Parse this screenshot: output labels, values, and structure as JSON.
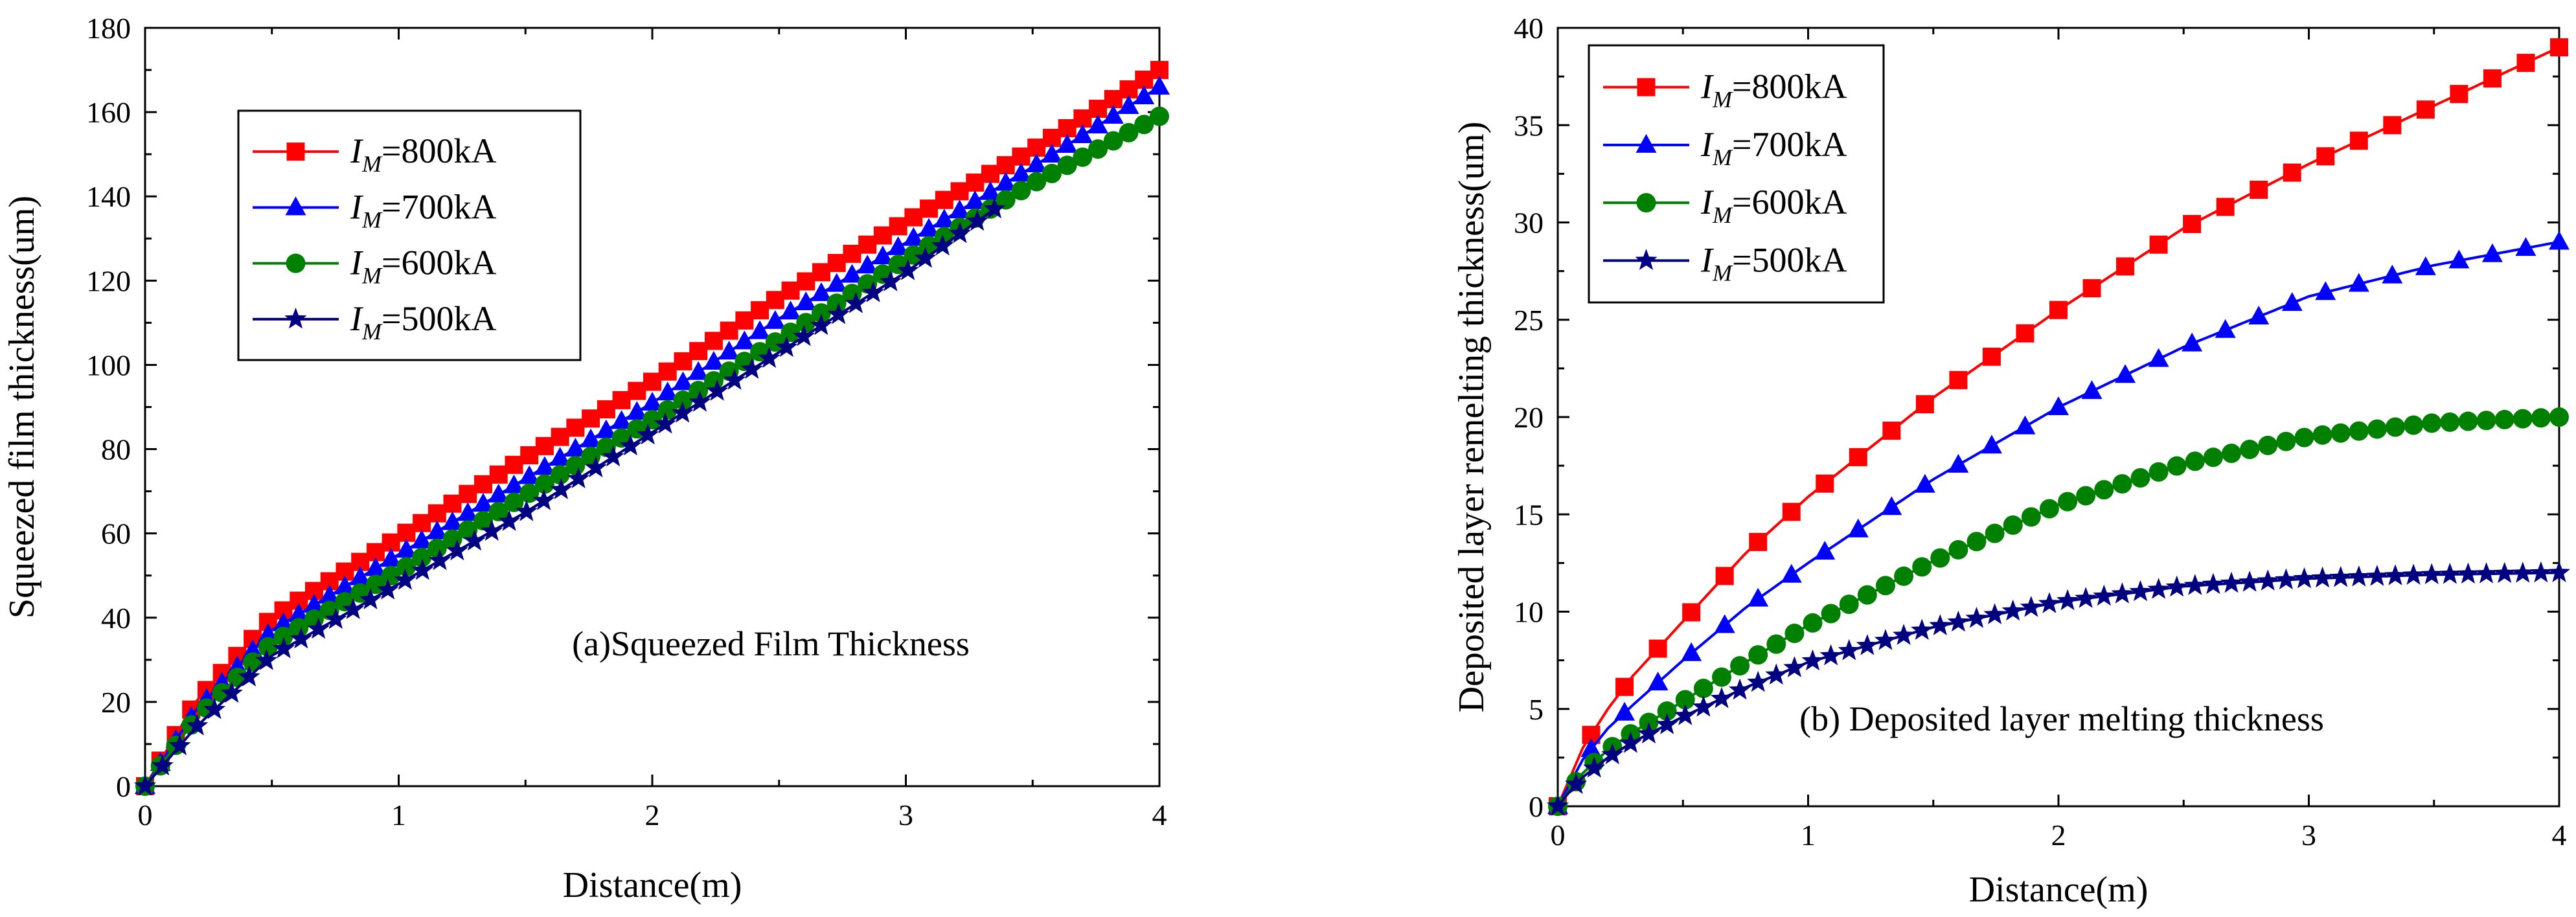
{
  "chart_data": [
    {
      "type": "line",
      "annotation": "(a)Squeezed Film Thickness",
      "xlabel": "Distance(m)",
      "ylabel": "Squeezed film thickness(um)",
      "xlim": [
        0,
        4
      ],
      "ylim": [
        0,
        180
      ],
      "xticks": [
        0,
        1,
        2,
        3,
        4
      ],
      "yticks": [
        0,
        20,
        40,
        60,
        80,
        100,
        120,
        140,
        160,
        180
      ],
      "legend_position": "top-left",
      "series": [
        {
          "name": "I_M=800kA",
          "legend_prefix": "I",
          "legend_subscript": "M",
          "legend_value": "=800kA",
          "color": "#ff0000",
          "marker": "square",
          "marker_count": 67,
          "x": [
            0,
            0.2,
            0.5,
            1.0,
            1.5,
            2.0,
            2.5,
            3.0,
            3.5,
            4.0
          ],
          "y": [
            0,
            20,
            40,
            59,
            78,
            96,
            116,
            134,
            151,
            170
          ]
        },
        {
          "name": "I_M=700kA",
          "legend_prefix": "I",
          "legend_subscript": "M",
          "legend_value": "=700kA",
          "color": "#0000ff",
          "marker": "triangle",
          "marker_count": 67,
          "x": [
            0,
            0.2,
            0.5,
            1.0,
            1.5,
            2.0,
            2.5,
            3.0,
            3.5,
            4.0
          ],
          "y": [
            0,
            18,
            37,
            55,
            73,
            91,
            111,
            129,
            147,
            166
          ]
        },
        {
          "name": "I_M=600kA",
          "legend_prefix": "I",
          "legend_subscript": "M",
          "legend_value": "=600kA",
          "color": "#008000",
          "marker": "circle",
          "marker_count": 67,
          "x": [
            0,
            0.2,
            0.5,
            1.0,
            1.5,
            2.0,
            2.5,
            3.0,
            3.5,
            4.0
          ],
          "y": [
            0,
            16,
            34,
            51,
            69,
            87,
            106,
            125,
            143,
            159
          ]
        },
        {
          "name": "I_M=500kA",
          "legend_prefix": "I",
          "legend_subscript": "M",
          "legend_value": "=500kA",
          "color": "#000080",
          "marker": "star",
          "marker_count": 50,
          "x": [
            0,
            0.2,
            0.5,
            1.0,
            1.5,
            2.0,
            2.5,
            3.0,
            3.35
          ],
          "y": [
            0,
            14,
            31,
            48,
            65,
            84,
            103,
            122,
            137
          ]
        }
      ]
    },
    {
      "type": "line",
      "annotation": "(b) Deposited layer melting thickness",
      "xlabel": "Distance(m)",
      "ylabel": "Deposited layer remelting thickness(um)",
      "xlim": [
        0,
        4
      ],
      "ylim": [
        0,
        40
      ],
      "xticks": [
        0,
        1,
        2,
        3,
        4
      ],
      "yticks": [
        0,
        5,
        10,
        15,
        20,
        25,
        30,
        35,
        40
      ],
      "legend_position": "top-left",
      "series": [
        {
          "name": "I_M=800kA",
          "legend_prefix": "I",
          "legend_subscript": "M",
          "legend_value": "=800kA",
          "color": "#ff0000",
          "marker": "square",
          "marker_count": 31,
          "x": [
            0,
            0.05,
            0.1,
            0.2,
            0.3,
            0.5,
            0.75,
            1.0,
            1.5,
            2.0,
            2.5,
            3.0,
            3.5,
            4.0
          ],
          "y": [
            0,
            1.5,
            3.0,
            5.0,
            6.7,
            9.5,
            13.0,
            15.9,
            21.0,
            25.5,
            29.7,
            33.0,
            36.0,
            39.0
          ]
        },
        {
          "name": "I_M=700kA",
          "legend_prefix": "I",
          "legend_subscript": "M",
          "legend_value": "=700kA",
          "color": "#0000ff",
          "marker": "triangle",
          "marker_count": 31,
          "x": [
            0,
            0.05,
            0.1,
            0.2,
            0.3,
            0.5,
            0.75,
            1.0,
            1.5,
            2.0,
            2.5,
            3.0,
            3.5,
            4.0
          ],
          "y": [
            0,
            1.2,
            2.4,
            4.0,
            5.2,
            7.5,
            10.2,
            12.5,
            16.8,
            20.5,
            23.6,
            26.2,
            27.8,
            29.0
          ]
        },
        {
          "name": "I_M=600kA",
          "legend_prefix": "I",
          "legend_subscript": "M",
          "legend_value": "=600kA",
          "color": "#008000",
          "marker": "circle",
          "marker_count": 56,
          "x": [
            0,
            0.05,
            0.1,
            0.2,
            0.3,
            0.5,
            0.75,
            1.0,
            1.5,
            2.0,
            2.5,
            3.0,
            3.5,
            4.0
          ],
          "y": [
            0,
            0.9,
            1.7,
            2.9,
            3.8,
            5.4,
            7.4,
            9.3,
            12.6,
            15.5,
            17.6,
            19.0,
            19.7,
            20.0
          ]
        },
        {
          "name": "I_M=500kA",
          "legend_prefix": "I",
          "legend_subscript": "M",
          "legend_value": "=500kA",
          "color": "#000080",
          "marker": "star",
          "marker_count": 56,
          "x": [
            0,
            0.05,
            0.1,
            0.2,
            0.3,
            0.5,
            0.75,
            1.0,
            1.5,
            2.0,
            2.5,
            3.0,
            3.5,
            4.0
          ],
          "y": [
            0,
            0.8,
            1.5,
            2.5,
            3.3,
            4.6,
            6.1,
            7.4,
            9.2,
            10.5,
            11.3,
            11.7,
            11.9,
            12.0
          ]
        }
      ]
    }
  ]
}
